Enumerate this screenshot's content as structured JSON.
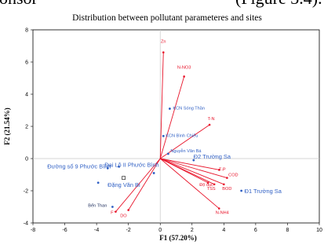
{
  "top_text": {
    "left": "onsor",
    "right": "(Figure 3.4)."
  },
  "chart_data": {
    "type": "scatter",
    "subtype": "pca-biplot",
    "title": "Distribution between pollutant parameteres and sites",
    "xlabel": "F1 (57.20%)",
    "ylabel": "F2 (21.54%)",
    "xlim": [
      -8,
      10
    ],
    "ylim": [
      -4,
      8
    ],
    "xticks": [
      "-8",
      "-6",
      "-4",
      "-2",
      "0",
      "2",
      "4",
      "6",
      "8",
      "10"
    ],
    "yticks": [
      "-4",
      "-2",
      "0",
      "2",
      "4",
      "6",
      "8"
    ],
    "grid": false,
    "legend": "none",
    "colors": {
      "variables": "#e8152b",
      "sites": "#2f5fc4",
      "origin_lines": "#c8c8c8"
    },
    "variables": [
      {
        "name": "Zn",
        "x": 0.2,
        "y": 6.6
      },
      {
        "name": "N-NO3",
        "x": 1.5,
        "y": 5.1
      },
      {
        "name": "T-N",
        "x": 3.1,
        "y": 2.1
      },
      {
        "name": "T-P",
        "x": 3.7,
        "y": -0.7
      },
      {
        "name": "COD",
        "x": 4.2,
        "y": -1.2
      },
      {
        "name": "Độ đục",
        "x": 3.0,
        "y": -1.5
      },
      {
        "name": "TSS",
        "x": 3.4,
        "y": -1.6
      },
      {
        "name": "BOD",
        "x": 4.0,
        "y": -1.6
      },
      {
        "name": "N-NH4",
        "x": 3.7,
        "y": -3.1
      },
      {
        "name": "DO",
        "x": -2.0,
        "y": -3.2
      },
      {
        "name": "F⁻",
        "x": -2.8,
        "y": -3.3
      }
    ],
    "sites": [
      {
        "name": "KCN Sóng Thần",
        "x": 0.6,
        "y": 3.1
      },
      {
        "name": "KCN Bình Chiểu",
        "x": 0.2,
        "y": 1.4
      },
      {
        "name": "Nguyễn Văn Bá",
        "x": 0.5,
        "y": 0.3
      },
      {
        "name": "Đ2 Trường Sa",
        "x": 2.1,
        "y": -0.1
      },
      {
        "name": "Đ1 Trường Sa",
        "x": 5.1,
        "y": -2.0
      },
      {
        "name": "Đại Lộ II Phước Bình",
        "x": -3.3,
        "y": -0.6
      },
      {
        "name": "Đường số 9 Phước Bình",
        "x": -2.6,
        "y": -0.5
      },
      {
        "name": "Đặng Văn Bi",
        "x": -3.9,
        "y": -1.5
      },
      {
        "name": "Bến Than",
        "x": -3.0,
        "y": -3.0
      },
      {
        "name": "",
        "x": -0.4,
        "y": -0.9
      }
    ],
    "marker": {
      "x": -2.3,
      "y": -1.2
    }
  }
}
